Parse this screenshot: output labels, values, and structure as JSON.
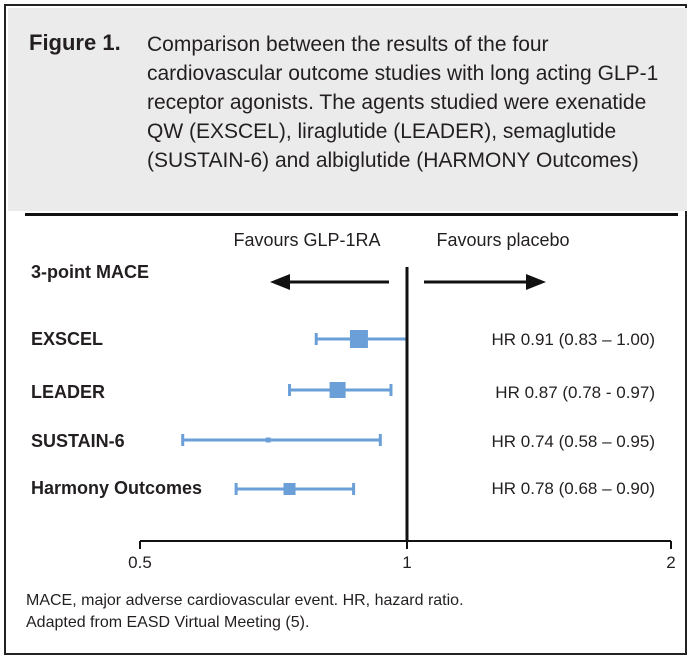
{
  "figure": {
    "label": "Figure 1.",
    "caption": "Comparison between the results of the four cardiovascular outcome studies with long acting GLP-1 receptor agonists. The agents studied were exenatide QW (EXSCEL), liraglutide (LEADER), semaglutide (SUSTAIN-6) and albiglutide (HARMONY Outcomes)"
  },
  "footnotes": {
    "line1": "MACE, major adverse cardiovascular event. HR, hazard ratio.",
    "line2": "Adapted from EASD Virtual Meeting (5)."
  },
  "colors": {
    "marker": "#6a9fd8",
    "axis": "#111111",
    "text": "#231f20"
  },
  "chart_data": {
    "type": "forest",
    "section_label": "3-point MACE",
    "favours_left": "Favours GLP-1RA",
    "favours_right": "Favours placebo",
    "xlim": [
      0.5,
      2
    ],
    "reference_line": 1,
    "xticks": [
      0.5,
      1,
      2
    ],
    "xtick_labels": [
      "0.5",
      "1",
      "2"
    ],
    "studies": [
      {
        "name": "EXSCEL",
        "hr": 0.91,
        "lower": 0.83,
        "upper": 1.0,
        "label": "HR 0.91 (0.83 – 1.00)"
      },
      {
        "name": "LEADER",
        "hr": 0.87,
        "lower": 0.78,
        "upper": 0.97,
        "label": "HR 0.87 (0.78 - 0.97)"
      },
      {
        "name": "SUSTAIN-6",
        "hr": 0.74,
        "lower": 0.58,
        "upper": 0.95,
        "label": "HR 0.74 (0.58 – 0.95)"
      },
      {
        "name": "Harmony Outcomes",
        "hr": 0.78,
        "lower": 0.68,
        "upper": 0.9,
        "label": "HR 0.78 (0.68 – 0.90)"
      }
    ]
  }
}
